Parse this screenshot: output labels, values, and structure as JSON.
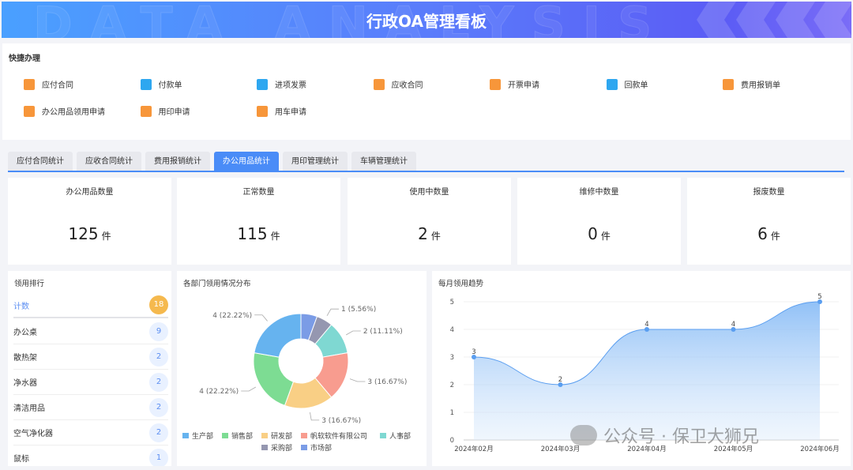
{
  "header": {
    "title": "行政OA管理看板",
    "bg_text": "DATA ANALYSIS"
  },
  "quick": {
    "title": "快捷办理",
    "items": [
      {
        "label": "应付合同",
        "icon": "paper-plane-icon",
        "color": "#f7963a"
      },
      {
        "label": "付款单",
        "icon": "wallet-icon",
        "color": "#2ea7f0"
      },
      {
        "label": "进项发票",
        "icon": "document-icon",
        "color": "#2ea7f0"
      },
      {
        "label": "应收合同",
        "icon": "yuan-house-icon",
        "color": "#f7963a"
      },
      {
        "label": "开票申请",
        "icon": "tag-icon",
        "color": "#f7963a"
      },
      {
        "label": "回款单",
        "icon": "bookmark-star-icon",
        "color": "#2ea7f0"
      },
      {
        "label": "费用报销单",
        "icon": "bar-chart-icon",
        "color": "#f7963a"
      },
      {
        "label": "办公用品领用申请",
        "icon": "org-chart-icon",
        "color": "#f7963a"
      },
      {
        "label": "用印申请",
        "icon": "stamp-icon",
        "color": "#f7963a"
      },
      {
        "label": "用车申请",
        "icon": "truck-icon",
        "color": "#f7963a"
      }
    ]
  },
  "tabs": [
    {
      "label": "应付合同统计"
    },
    {
      "label": "应收合同统计"
    },
    {
      "label": "费用报销统计"
    },
    {
      "label": "办公用品统计",
      "active": true
    },
    {
      "label": "用印管理统计"
    },
    {
      "label": "车辆管理统计"
    }
  ],
  "stats": [
    {
      "label": "办公用品数量",
      "value": "125",
      "unit": "件"
    },
    {
      "label": "正常数量",
      "value": "115",
      "unit": "件"
    },
    {
      "label": "使用中数量",
      "value": "2",
      "unit": "件"
    },
    {
      "label": "维修中数量",
      "value": "0",
      "unit": "件"
    },
    {
      "label": "报废数量",
      "value": "6",
      "unit": "件"
    }
  ],
  "ranking": {
    "title": "领用排行",
    "total_label": "计数",
    "total": "18",
    "items": [
      {
        "name": "办公桌",
        "count": "9"
      },
      {
        "name": "散热架",
        "count": "2"
      },
      {
        "name": "净水器",
        "count": "2"
      },
      {
        "name": "清洁用品",
        "count": "2"
      },
      {
        "name": "空气净化器",
        "count": "2"
      },
      {
        "name": "鼠标",
        "count": "1"
      }
    ]
  },
  "chart_data": [
    {
      "type": "pie",
      "title": "各部门领用情况分布",
      "donut": true,
      "slices": [
        {
          "name": "市场部",
          "value": 1,
          "label": "",
          "color": "#7b9ce6"
        },
        {
          "name": "采购部",
          "value": 1,
          "label": "1 (5.56%)",
          "color": "#9597b0"
        },
        {
          "name": "人事部",
          "value": 2,
          "label": "2 (11.11%)",
          "color": "#7fd8d2"
        },
        {
          "name": "帆软软件有限公司",
          "value": 3,
          "label": "3 (16.67%)",
          "color": "#f89c8f"
        },
        {
          "name": "研发部",
          "value": 3,
          "label": "3 (16.67%)",
          "color": "#f9cf85"
        },
        {
          "name": "销售部",
          "value": 4,
          "label": "4 (22.22%)",
          "color": "#7ddc93"
        },
        {
          "name": "生产部",
          "value": 4,
          "label": "4 (22.22%)",
          "color": "#66b3ef"
        }
      ],
      "legend": [
        "生产部",
        "销售部",
        "研发部",
        "帆软软件有限公司",
        "人事部",
        "采购部",
        "市场部"
      ],
      "legend_placement": "bottom"
    },
    {
      "type": "area",
      "title": "每月领用趋势",
      "categories": [
        "2024年02月",
        "2024年03月",
        "2024年04月",
        "2024年05月",
        "2024年06月"
      ],
      "values": [
        3,
        2,
        4,
        4,
        5
      ],
      "ylim": [
        0,
        5
      ],
      "yticks": [
        "0",
        "1",
        "2",
        "3",
        "4",
        "5"
      ],
      "color": "#5a9ef0",
      "smooth": true,
      "grid": true
    }
  ],
  "watermark": "公众号 · 保卫大狮兄"
}
